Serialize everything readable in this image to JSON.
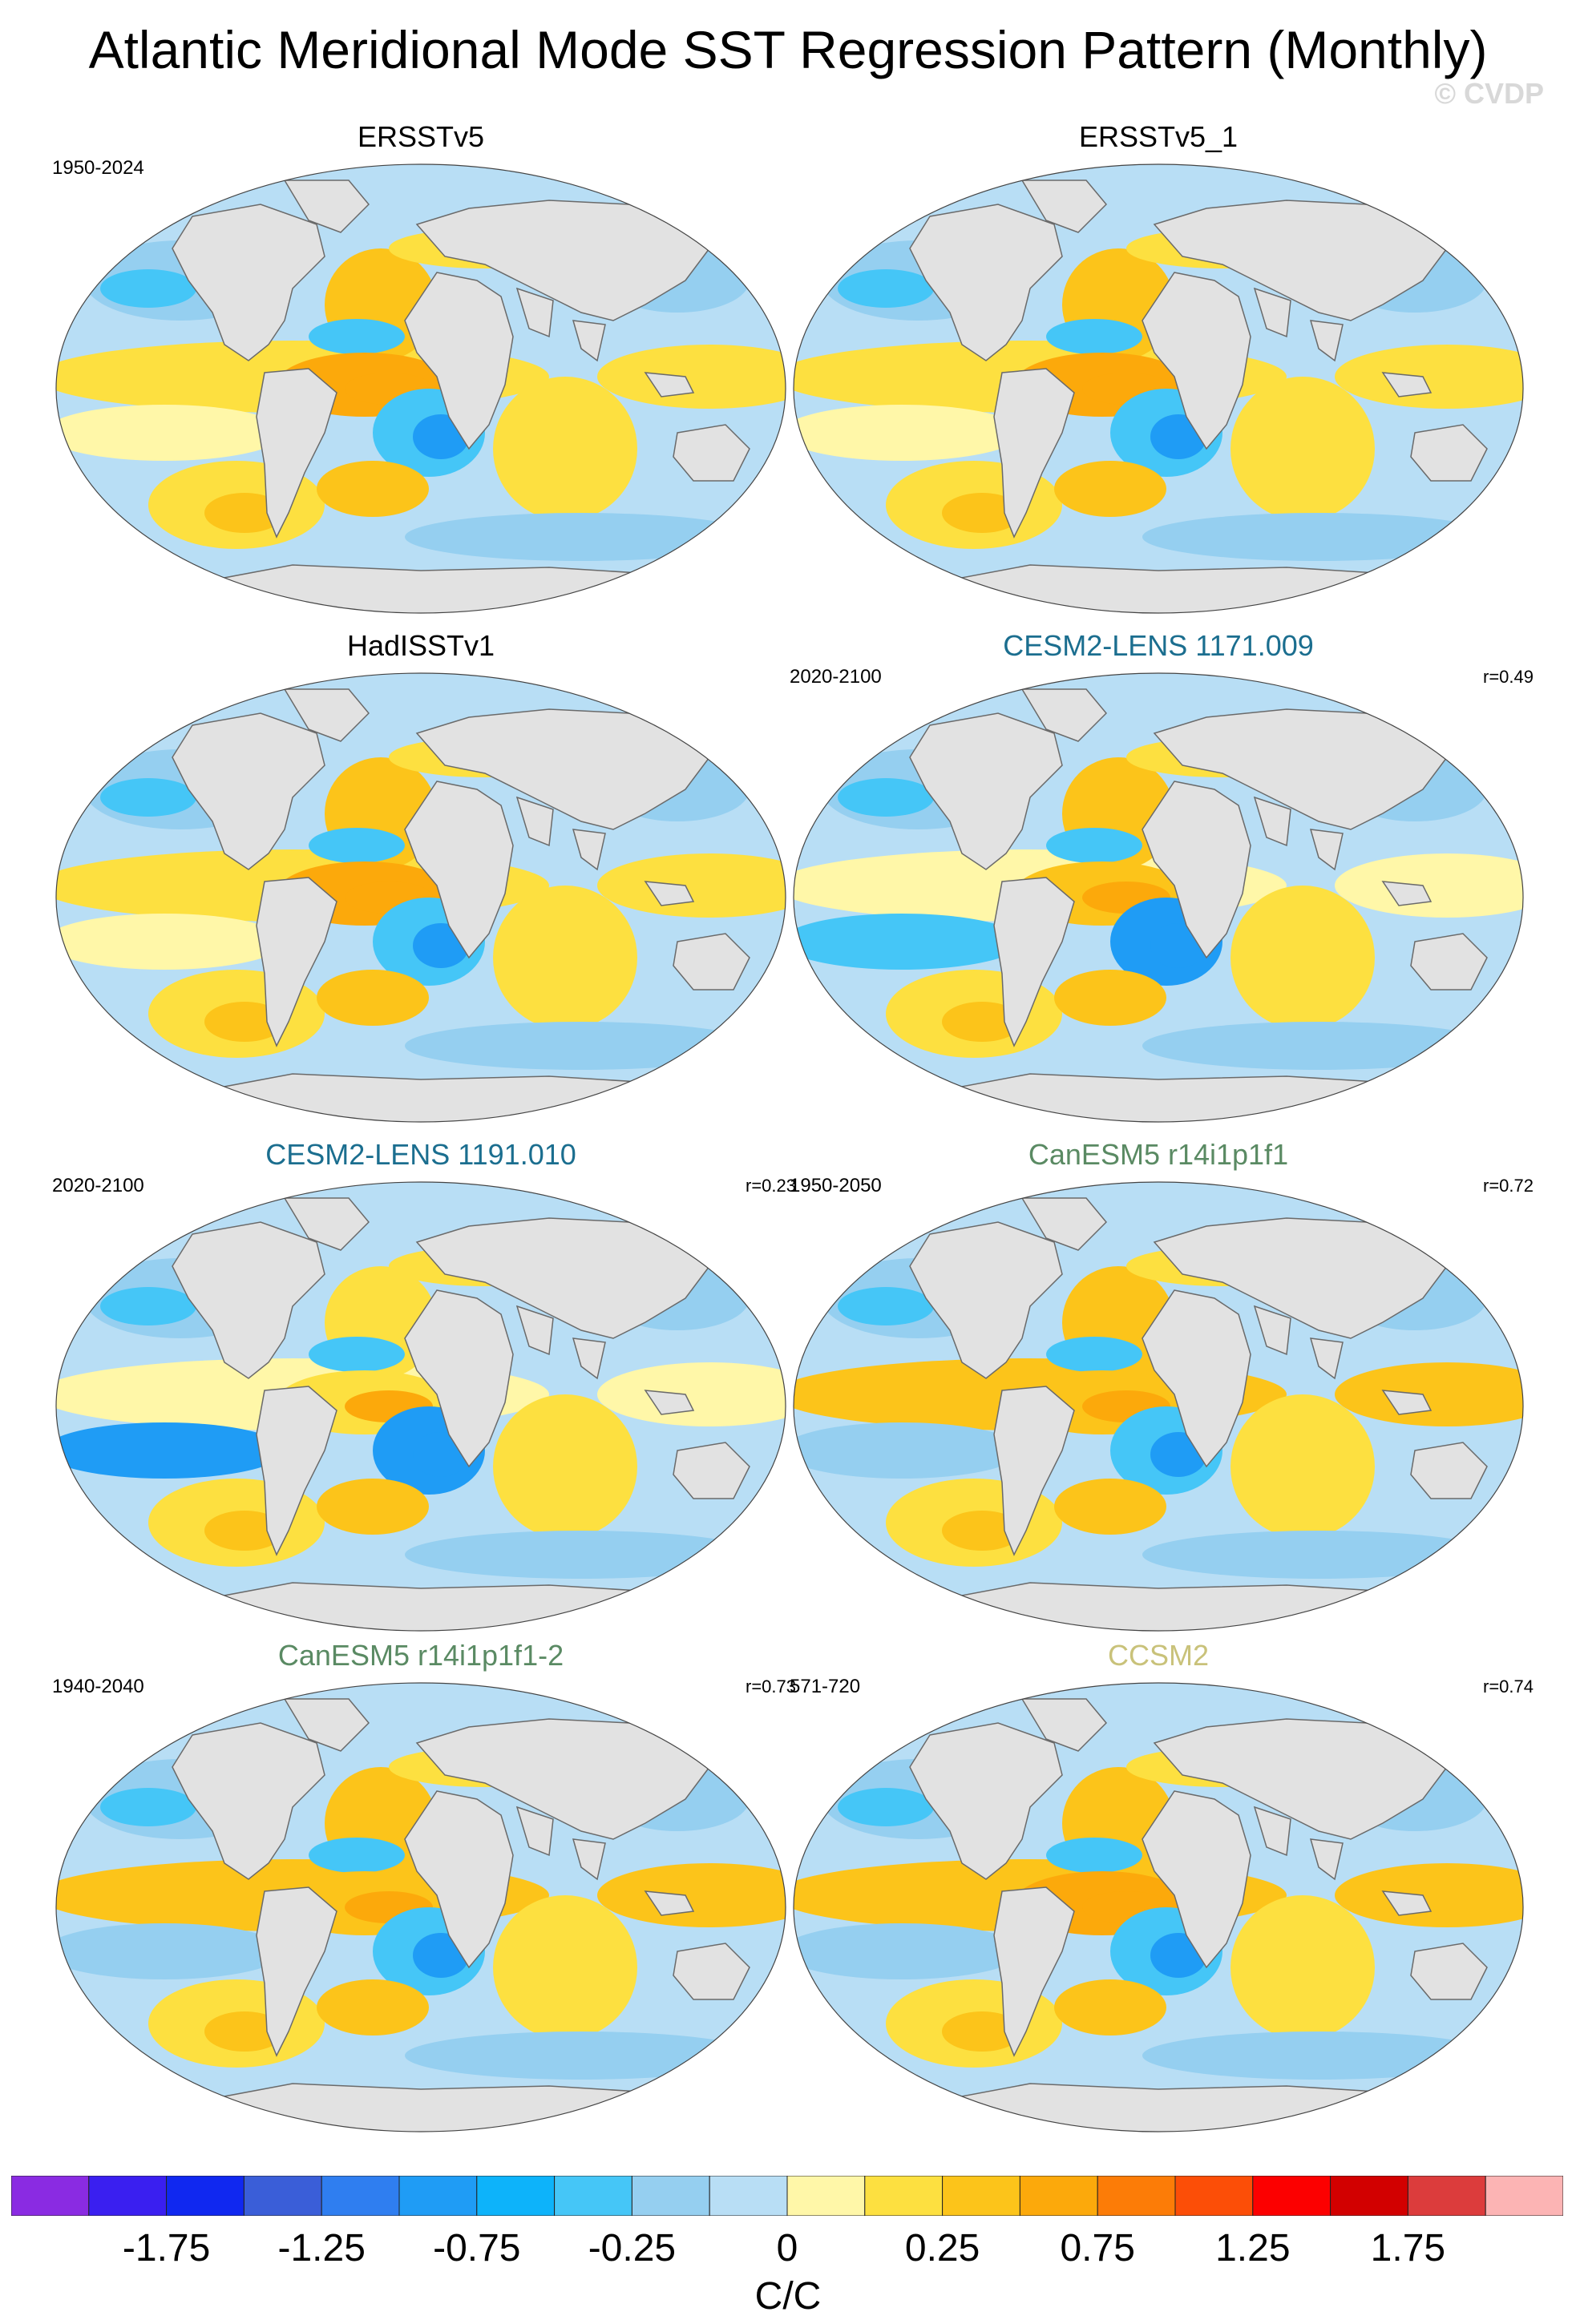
{
  "title": "Atlantic Meridional Mode SST Regression Pattern (Monthly)",
  "copyright": "© CVDP",
  "panels": [
    {
      "title": "ERSSTv5",
      "period": "1950-2024",
      "corr": "",
      "title_color": "#000000",
      "variant": 0
    },
    {
      "title": "ERSSTv5_1",
      "period": "",
      "corr": "",
      "title_color": "#000000",
      "variant": 1
    },
    {
      "title": "HadISSTv1",
      "period": "",
      "corr": "",
      "title_color": "#000000",
      "variant": 2
    },
    {
      "title": "CESM2-LENS 1171.009",
      "period": "2020-2100",
      "corr": "r=0.49",
      "title_color": "#1b6e8f",
      "variant": 3
    },
    {
      "title": "CESM2-LENS 1191.010",
      "period": "2020-2100",
      "corr": "r=0.23",
      "title_color": "#1b6e8f",
      "variant": 4
    },
    {
      "title": "CanESM5 r14i1p1f1",
      "period": "1950-2050",
      "corr": "r=0.72",
      "title_color": "#5a8a63",
      "variant": 5
    },
    {
      "title": "CanESM5 r14i1p1f1-2",
      "period": "1940-2040",
      "corr": "r=0.73",
      "title_color": "#5a8a63",
      "variant": 6
    },
    {
      "title": "CCSM2",
      "period": "571-720",
      "corr": "r=0.74",
      "title_color": "#c9c27a",
      "variant": 7
    }
  ],
  "colorbar": {
    "colors": [
      "#8a2be2",
      "#3a1ff0",
      "#1028f0",
      "#3a5ed8",
      "#2f7ef0",
      "#1f9cf5",
      "#0db3fa",
      "#45c6f7",
      "#95cff0",
      "#b8def5",
      "#fff7a8",
      "#fde040",
      "#fcc41a",
      "#fca90b",
      "#fc7c07",
      "#fc4e07",
      "#fc0000",
      "#d20000",
      "#dc3c3c",
      "#fcb4b4"
    ],
    "labels": [
      "-1.75",
      "-1.25",
      "-0.75",
      "-0.25",
      "0",
      "0.25",
      "0.75",
      "1.25",
      "1.75"
    ],
    "units": "C/C"
  }
}
